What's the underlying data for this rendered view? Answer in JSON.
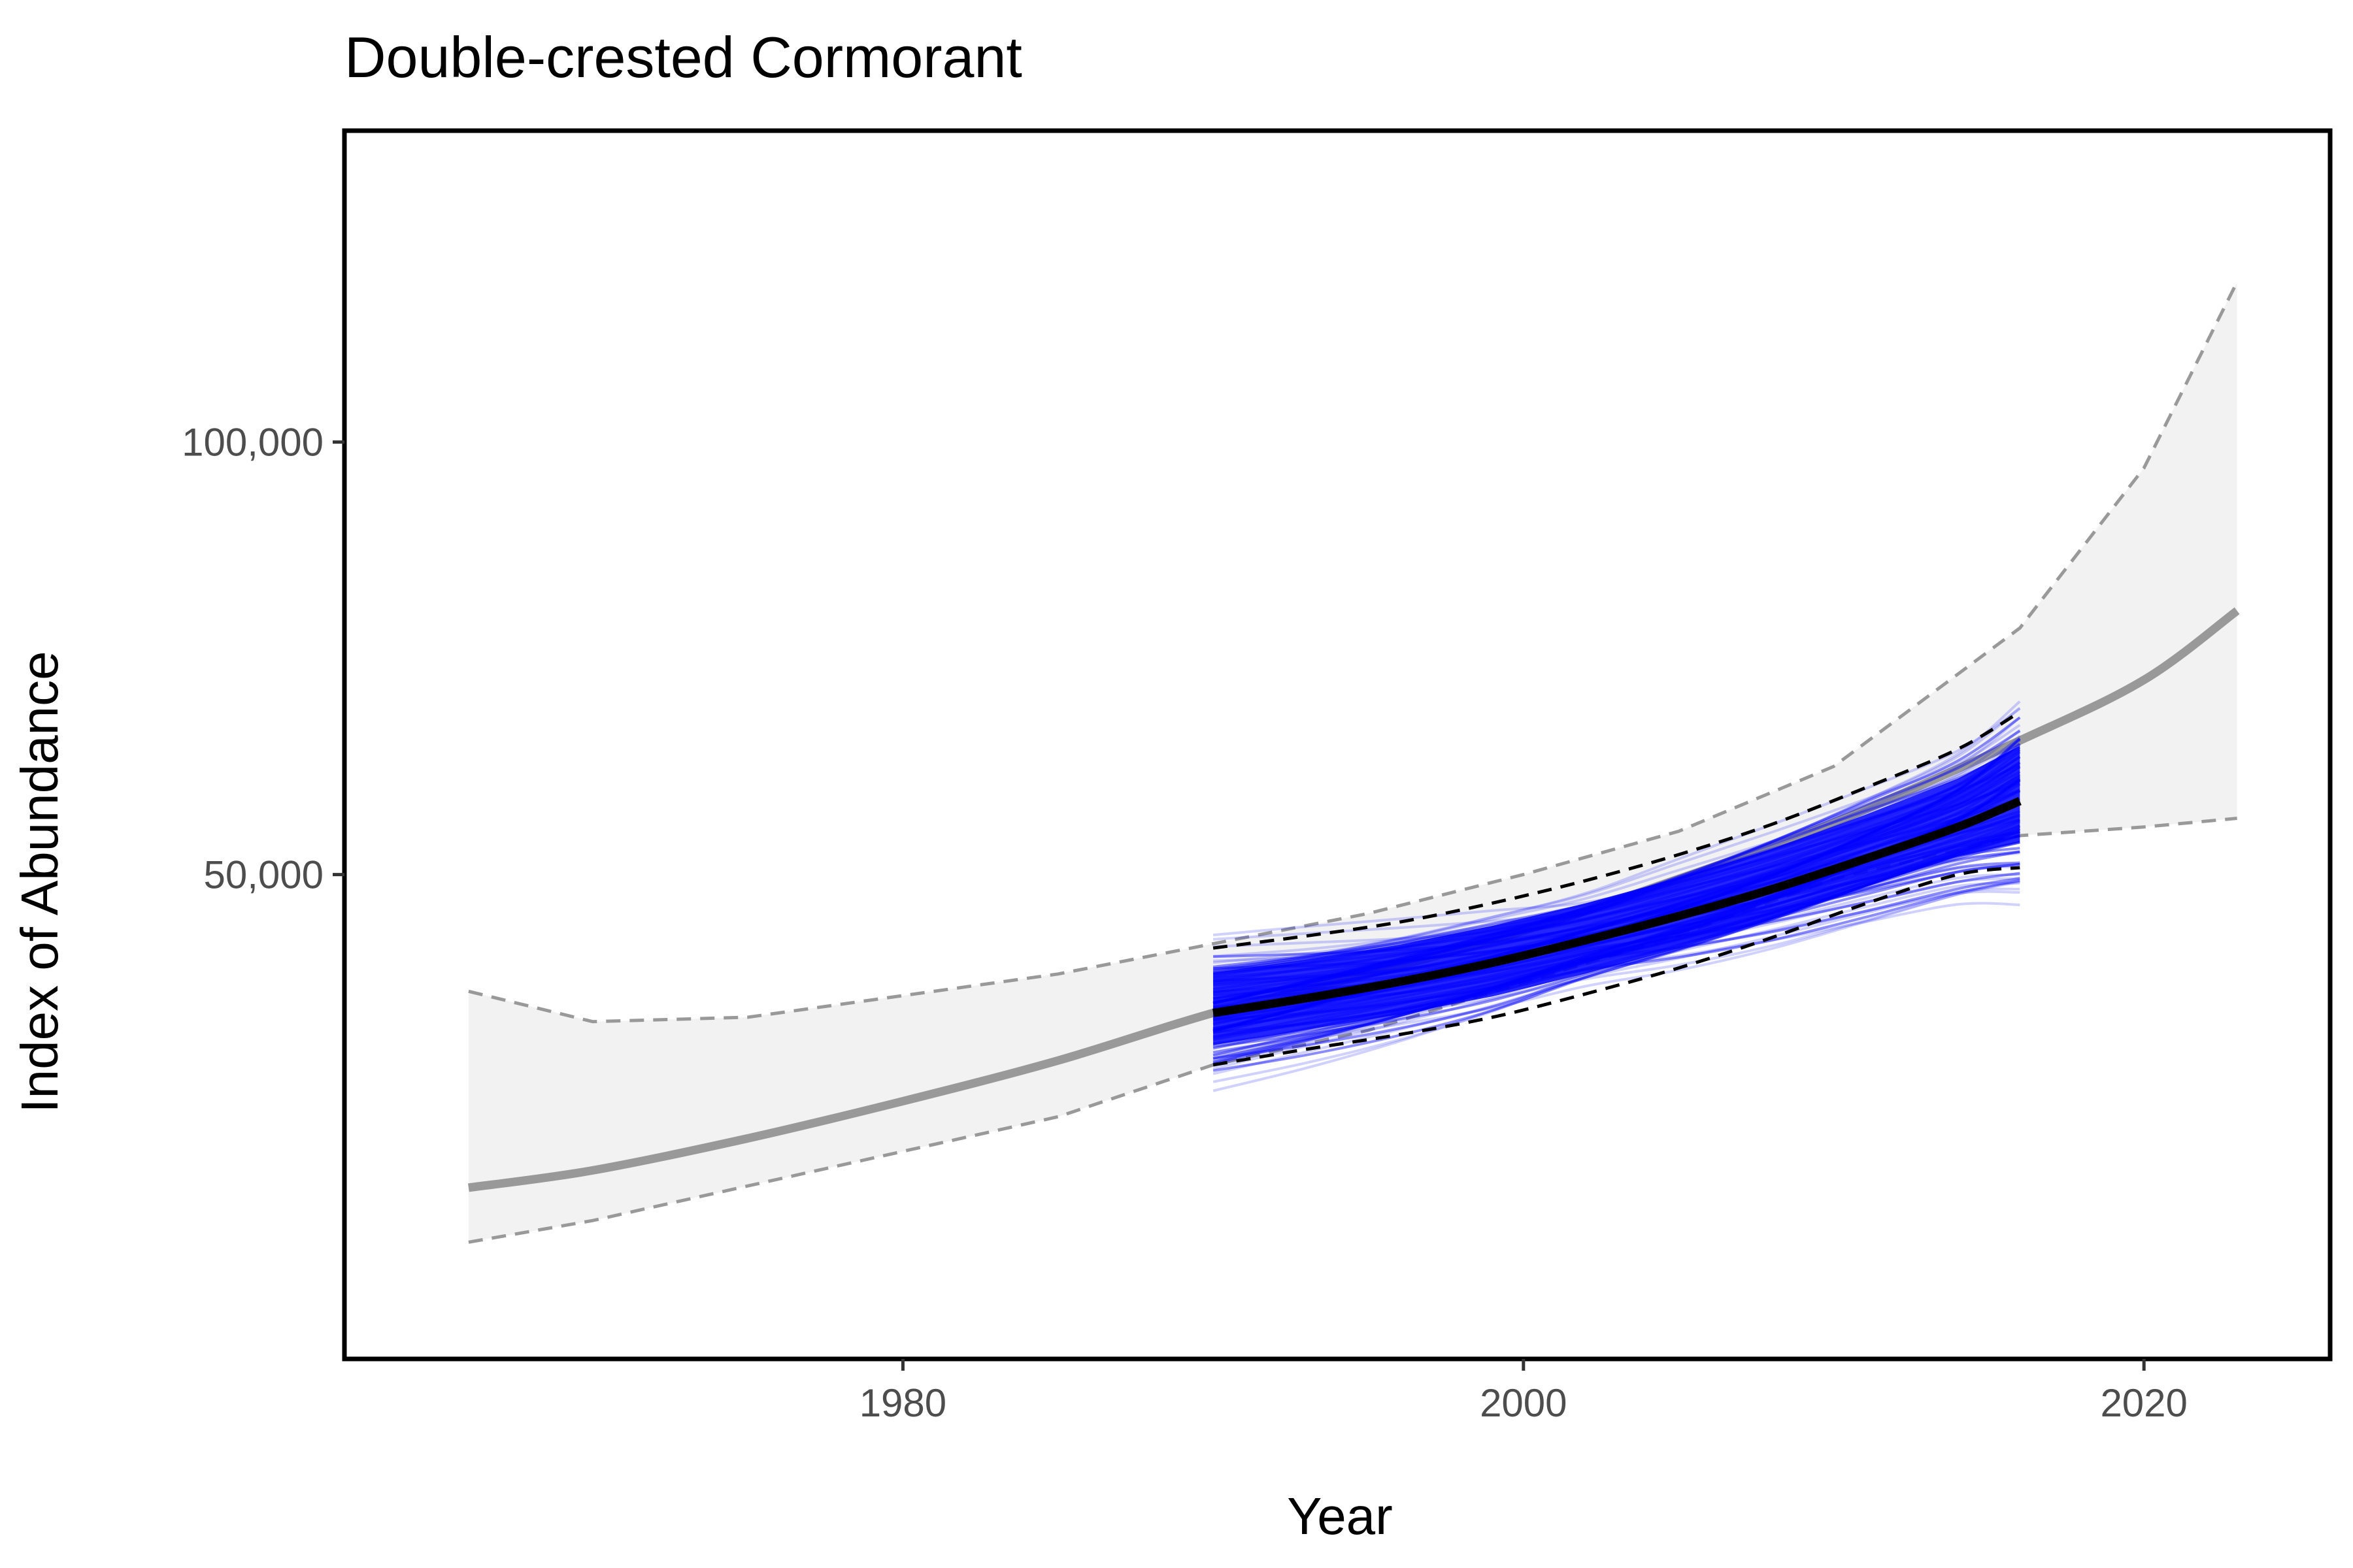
{
  "chart_data": {
    "type": "line",
    "title": "Double-crested Cormorant",
    "xlabel": "Year",
    "ylabel": "Index of Abundance",
    "xlim": [
      1962,
      2026
    ],
    "ylim": [
      -6000,
      136000
    ],
    "x_ticks": [
      1980,
      2000,
      2020
    ],
    "x_tick_labels": [
      "1980",
      "2000",
      "2020"
    ],
    "y_ticks": [
      50000,
      100000
    ],
    "y_tick_labels": [
      "50,000",
      "100,000"
    ],
    "grid": false,
    "legend": "none",
    "colors": {
      "full_trend": "#999999",
      "full_band": "#f2f2f2",
      "full_ci": "#999999",
      "focal_trend": "#000000",
      "focal_ci": "#000000",
      "draws": "#0000ff"
    },
    "full_period": {
      "x": [
        1966,
        1970,
        1975,
        1980,
        1985,
        1990,
        1995,
        2000,
        2005,
        2010,
        2016,
        2020,
        2023
      ],
      "trend": [
        13800,
        15800,
        19500,
        23800,
        28500,
        34000,
        38500,
        43500,
        49500,
        56000,
        65500,
        72500,
        80500
      ],
      "lower": [
        7500,
        10000,
        14000,
        18000,
        22000,
        28000,
        32000,
        37500,
        43000,
        49500,
        54500,
        55500,
        56500
      ],
      "upper": [
        36500,
        33000,
        33500,
        36000,
        38500,
        42000,
        45500,
        50000,
        55000,
        62500,
        78500,
        97000,
        118500
      ]
    },
    "focal_period": {
      "x": [
        1990,
        1993,
        1996,
        1999,
        2002,
        2005,
        2008,
        2011,
        2014,
        2016
      ],
      "trend": [
        34000,
        35700,
        37600,
        39800,
        42400,
        45200,
        48300,
        51800,
        55500,
        58500
      ],
      "lower": [
        28000,
        29800,
        31500,
        33500,
        36200,
        39200,
        42700,
        46600,
        50000,
        50800
      ],
      "upper": [
        41500,
        42900,
        44500,
        46700,
        49300,
        52300,
        55800,
        60000,
        64500,
        68800
      ]
    }
  }
}
